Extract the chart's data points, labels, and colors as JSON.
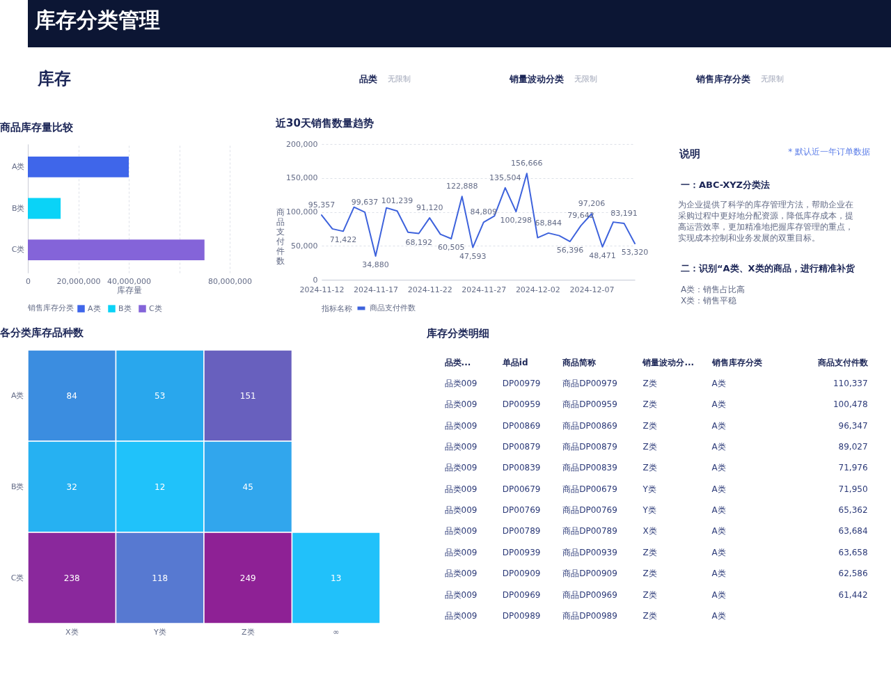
{
  "chart_data": [
    {
      "type": "other",
      "title": "库存分类管理",
      "subtitle": "库存",
      "annotations": [
        "品类",
        "无限制",
        "销量波动分类",
        "无限制",
        "销售库存分类",
        "无限制"
      ]
    },
    {
      "type": "bar",
      "orientation": "horizontal",
      "stacked": true,
      "title": "商品库存量比较",
      "categories": [
        "A类",
        "B类",
        "C类"
      ],
      "series": [
        {
          "name": "A类",
          "color": "#3f66ea",
          "values": [
            40000000,
            null,
            null
          ]
        },
        {
          "name": "B类",
          "color": "#0ad3f7",
          "values": [
            null,
            13000000,
            null
          ]
        },
        {
          "name": "C类",
          "color": "#8464d9",
          "values": [
            null,
            null,
            70000000
          ]
        }
      ],
      "xlabel": "库存量",
      "xlim": [
        0,
        80000000
      ],
      "xticks": [
        0,
        {
          "value": 20000000,
          "label": "20,000,000"
        },
        {
          "value": 40000000,
          "label": "40,000,000"
        },
        {
          "value": 60000000,
          "label": null
        },
        {
          "value": 80000000,
          "label": "80,000,000"
        }
      ],
      "grid": "x",
      "legend": "bottom",
      "legend_title": "销售库存分类"
    },
    {
      "type": "line",
      "title": "近30天销售数量趋势",
      "ylabel": "商品支付件数",
      "x": [
        "2024-11-12",
        "2024-11-13",
        "2024-11-14",
        "2024-11-15",
        "2024-11-16",
        "2024-11-17",
        "2024-11-18",
        "2024-11-19",
        "2024-11-20",
        "2024-11-21",
        "2024-11-22",
        "2024-11-23",
        "2024-11-24",
        "2024-11-25",
        "2024-11-26",
        "2024-11-27",
        "2024-11-28",
        "2024-11-29",
        "2024-11-30",
        "2024-12-01",
        "2024-12-02",
        "2024-12-03",
        "2024-12-04",
        "2024-12-05",
        "2024-12-06",
        "2024-12-07",
        "2024-12-08",
        "2024-12-09",
        "2024-12-10",
        "2024-12-11"
      ],
      "series": [
        {
          "name": "商品支付件数",
          "color": "#3d62dc",
          "values": [
            95357,
            75000,
            71422,
            107000,
            99637,
            34880,
            106000,
            101239,
            70000,
            68192,
            91120,
            67000,
            60505,
            122888,
            47593,
            84809,
            94000,
            135504,
            100298,
            156666,
            62000,
            68844,
            65000,
            56396,
            79642,
            97206,
            48471,
            85000,
            83191,
            53320
          ],
          "value_labels": [
            "95,357",
            null,
            "71,422",
            null,
            "99,637",
            "34,880",
            null,
            "101,239",
            null,
            "68,192",
            "91,120",
            null,
            "60,505",
            "122,888",
            "47,593",
            "84,809",
            null,
            "135,504",
            "100,298",
            "156,666",
            null,
            "68,844",
            null,
            "56,396",
            "79,642",
            "97,206",
            "48,471",
            null,
            "83,191",
            "53,320"
          ]
        }
      ],
      "xlim": [
        "2024-11-12",
        "2024-12-11"
      ],
      "xticks": [
        "2024-11-12",
        "2024-11-17",
        "2024-11-22",
        "2024-11-27",
        "2024-12-02",
        "2024-12-07"
      ],
      "ylim": [
        0,
        200000
      ],
      "yticks": [
        0,
        {
          "value": 50000,
          "label": "50,000"
        },
        {
          "value": 100000,
          "label": "100,000"
        },
        {
          "value": 150000,
          "label": "150,000"
        },
        {
          "value": 200000,
          "label": "200,000"
        }
      ],
      "grid": "y",
      "legend": "bottom",
      "legend_title": "指标名称"
    },
    {
      "type": "other",
      "title": "说明",
      "annotations": [
        "* 默认近一年订单数据",
        "一：ABC-XYZ分类法",
        "为企业提供了科学的库存管理方法，帮助企业在采购过程中更好地分配资源，降低库存成本，提高运营效率，更加精准地把握库存管理的重点，实现成本控制和业务发展的双重目标。",
        "二：识别“A类、X类的商品，进行精准补货",
        "A类：销售占比高",
        "X类：销售平稳"
      ]
    },
    {
      "type": "heatmap",
      "title": "各分类库存品种数",
      "categories": [
        "X类",
        "Y类",
        "Z类",
        "∞"
      ],
      "y_categories": [
        "A类",
        "B类",
        "C类"
      ],
      "cells": [
        [
          84,
          53,
          151,
          null
        ],
        [
          32,
          12,
          45,
          null
        ],
        [
          238,
          118,
          249,
          13
        ]
      ],
      "colors": [
        [
          "#3b8de0",
          "#29a7ed",
          "#6860be",
          null
        ],
        [
          "#26b1f2",
          "#20c2fa",
          "#31a6ed",
          null
        ],
        [
          "#8a289c",
          "#5779d1",
          "#8e2195",
          "#21c1fa"
        ]
      ],
      "data_labels": true
    },
    {
      "type": "other",
      "title": "库存分类明细",
      "categories": [
        "品类...",
        "单品id",
        "商品简称",
        "销量波动分...",
        "销售库存分类",
        "商品支付件数"
      ],
      "cell_labels": [
        [
          "品类009",
          "DP00979",
          "商品DP00979",
          "Z类",
          "A类",
          "110,337"
        ],
        [
          "品类009",
          "DP00959",
          "商品DP00959",
          "Z类",
          "A类",
          "100,478"
        ],
        [
          "品类009",
          "DP00869",
          "商品DP00869",
          "Z类",
          "A类",
          "96,347"
        ],
        [
          "品类009",
          "DP00879",
          "商品DP00879",
          "Z类",
          "A类",
          "89,027"
        ],
        [
          "品类009",
          "DP00839",
          "商品DP00839",
          "Z类",
          "A类",
          "71,976"
        ],
        [
          "品类009",
          "DP00679",
          "商品DP00679",
          "Y类",
          "A类",
          "71,950"
        ],
        [
          "品类009",
          "DP00769",
          "商品DP00769",
          "Y类",
          "A类",
          "65,362"
        ],
        [
          "品类009",
          "DP00789",
          "商品DP00789",
          "X类",
          "A类",
          "63,684"
        ],
        [
          "品类009",
          "DP00939",
          "商品DP00939",
          "Z类",
          "A类",
          "63,658"
        ],
        [
          "品类009",
          "DP00909",
          "商品DP00909",
          "Z类",
          "A类",
          "62,586"
        ],
        [
          "品类009",
          "DP00969",
          "商品DP00969",
          "Z类",
          "A类",
          "61,442"
        ],
        [
          "品类009",
          "DP00989",
          "商品DP00989",
          "Z类",
          "A类",
          null
        ]
      ]
    }
  ]
}
